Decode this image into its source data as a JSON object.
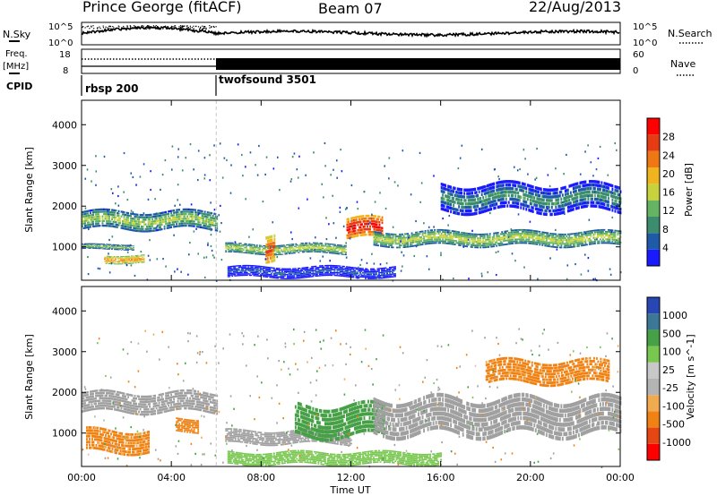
{
  "header": {
    "station": "Prince George (fitACF)",
    "beam": "Beam 07",
    "date": "22/Aug/2013"
  },
  "noise_panel": {
    "left_label": "N.Sky",
    "right_label": "N.Search",
    "left_ticks": [
      "10^5",
      "10^0"
    ],
    "right_ticks": [
      "10^5",
      "10^0"
    ]
  },
  "freq_panel": {
    "left_label_top": "Freq.",
    "left_label_bottom": "[MHz]",
    "right_label": "Nave",
    "left_ticks": [
      "18",
      "8"
    ],
    "right_ticks": [
      "60",
      "0"
    ]
  },
  "cpid": {
    "label": "CPID",
    "programs": [
      {
        "name": "rbsp 200",
        "start_hour": 0
      },
      {
        "name": "twofsound 3501",
        "start_hour": 6
      }
    ]
  },
  "time_axis": {
    "label": "Time UT",
    "ticks": [
      "00:00",
      "04:00",
      "08:00",
      "12:00",
      "16:00",
      "20:00",
      "00:00"
    ],
    "range_hours": [
      0,
      24
    ]
  },
  "range_axis": {
    "label": "Slant Range [km]",
    "ticks": [
      "1000",
      "2000",
      "3000",
      "4000"
    ],
    "range_km": [
      180,
      4600
    ]
  },
  "colors": {
    "power_scale": [
      "#1a1aff",
      "#1e5aa8",
      "#3c8c6e",
      "#64b464",
      "#c8d23c",
      "#f0b41e",
      "#f07814",
      "#e63c14",
      "#ff0000"
    ],
    "velocity_scale": [
      "#ff0000",
      "#e64614",
      "#f08214",
      "#f0aa50",
      "#b4b4b4",
      "#c8c8c8",
      "#78c850",
      "#46a046",
      "#3c7896",
      "#2846b4"
    ],
    "ground_scatter": "#a0a0a0"
  },
  "chart_data": [
    {
      "type": "heatmap",
      "quantity": "Power",
      "colorbar_label": "Power [dB]",
      "colorbar_ticks": [
        "4",
        "8",
        "12",
        "16",
        "20",
        "24",
        "28"
      ],
      "clim": [
        0,
        30
      ],
      "x": "time_hours",
      "y": "slant_range_km",
      "xlim": [
        0,
        24
      ],
      "ylim": [
        180,
        4600
      ],
      "features": [
        {
          "t0": 0.0,
          "t1": 6.0,
          "r_center": 1650,
          "r_half": 200,
          "value": 15
        },
        {
          "t0": 0.0,
          "t1": 2.3,
          "r_center": 1000,
          "r_half": 60,
          "value": 14
        },
        {
          "t0": 1.0,
          "t1": 2.8,
          "r_center": 700,
          "r_half": 90,
          "value": 22
        },
        {
          "t0": 6.4,
          "t1": 11.8,
          "r_center": 950,
          "r_half": 110,
          "value": 16
        },
        {
          "t0": 8.2,
          "t1": 8.6,
          "r_center": 1000,
          "r_half": 300,
          "value": 26
        },
        {
          "t0": 11.8,
          "t1": 13.4,
          "r_center": 1450,
          "r_half": 230,
          "value": 29
        },
        {
          "t0": 13.0,
          "t1": 24.0,
          "r_center": 1200,
          "r_half": 160,
          "value": 16
        },
        {
          "t0": 16.0,
          "t1": 24.0,
          "r_center": 2200,
          "r_half": 300,
          "value": 10
        },
        {
          "t0": 6.5,
          "t1": 14.0,
          "r_center": 380,
          "r_half": 120,
          "value": 6
        }
      ]
    },
    {
      "type": "heatmap",
      "quantity": "Velocity",
      "colorbar_label": "Velocity [m s^-1]",
      "colorbar_ticks": [
        "1000",
        "500",
        "100",
        "25",
        "-25",
        "-100",
        "-500",
        "-1000"
      ],
      "x": "time_hours",
      "y": "slant_range_km",
      "xlim": [
        0,
        24
      ],
      "ylim": [
        180,
        4600
      ],
      "features": [
        {
          "t0": 0.0,
          "t1": 6.0,
          "r_center": 1750,
          "r_half": 220,
          "value": "ground"
        },
        {
          "t0": 0.2,
          "t1": 3.0,
          "r_center": 800,
          "r_half": 250,
          "value": -120
        },
        {
          "t0": 4.2,
          "t1": 5.2,
          "r_center": 1200,
          "r_half": 150,
          "value": -150
        },
        {
          "t0": 6.4,
          "t1": 12.0,
          "r_center": 900,
          "r_half": 150,
          "value": "ground"
        },
        {
          "t0": 6.5,
          "t1": 16.0,
          "r_center": 380,
          "r_half": 140,
          "value": 60
        },
        {
          "t0": 9.5,
          "t1": 13.5,
          "r_center": 1300,
          "r_half": 350,
          "value": 180
        },
        {
          "t0": 13.0,
          "t1": 24.0,
          "r_center": 1400,
          "r_half": 400,
          "value": "ground"
        },
        {
          "t0": 18.0,
          "t1": 23.5,
          "r_center": 2500,
          "r_half": 250,
          "value": -130
        }
      ]
    }
  ]
}
